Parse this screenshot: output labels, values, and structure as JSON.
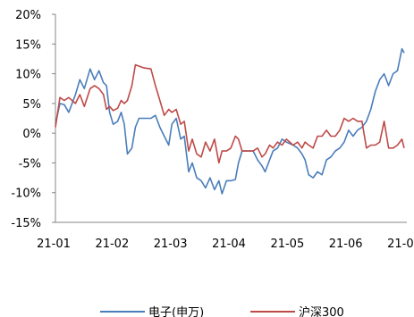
{
  "chart_data": {
    "type": "line",
    "x_tick_labels": [
      "21-01",
      "21-02",
      "21-03",
      "21-04",
      "21-05",
      "21-06",
      "21-07"
    ],
    "y_tick_labels": [
      "20%",
      "15%",
      "10%",
      "5%",
      "0%",
      "-5%",
      "-10%",
      "-15%"
    ],
    "ylim": [
      -15,
      20
    ],
    "y_ticks": [
      20,
      15,
      10,
      5,
      0,
      -5,
      -10,
      -15
    ],
    "legend_position": "bottom",
    "grid": false,
    "series": [
      {
        "name": "电子(申万)",
        "color": "#4a7ebb",
        "values": [
          [
            0.0,
            1.5
          ],
          [
            0.1,
            5.0
          ],
          [
            0.2,
            4.8
          ],
          [
            0.3,
            3.5
          ],
          [
            0.45,
            6.5
          ],
          [
            0.55,
            9.0
          ],
          [
            0.65,
            7.5
          ],
          [
            0.78,
            10.8
          ],
          [
            0.88,
            9.0
          ],
          [
            0.98,
            10.5
          ],
          [
            1.08,
            8.5
          ],
          [
            1.15,
            8.0
          ],
          [
            1.22,
            3.5
          ],
          [
            1.3,
            1.5
          ],
          [
            1.4,
            2.0
          ],
          [
            1.48,
            3.5
          ],
          [
            1.55,
            1.5
          ],
          [
            1.62,
            -3.5
          ],
          [
            1.72,
            -2.5
          ],
          [
            1.8,
            1.0
          ],
          [
            1.88,
            2.5
          ],
          [
            1.98,
            2.5
          ],
          [
            2.15,
            2.5
          ],
          [
            2.25,
            3.0
          ],
          [
            2.35,
            1.0
          ],
          [
            2.45,
            -0.5
          ],
          [
            2.55,
            -2.0
          ],
          [
            2.62,
            1.5
          ],
          [
            2.72,
            2.5
          ],
          [
            2.82,
            -1.0
          ],
          [
            2.9,
            -0.5
          ],
          [
            3.0,
            -6.5
          ],
          [
            3.08,
            -5.0
          ],
          [
            3.18,
            -7.5
          ],
          [
            3.28,
            -8.0
          ],
          [
            3.38,
            -9.2
          ],
          [
            3.48,
            -7.5
          ],
          [
            3.58,
            -9.5
          ],
          [
            3.68,
            -8.0
          ],
          [
            3.75,
            -10.2
          ],
          [
            3.85,
            -8.0
          ],
          [
            3.95,
            -8.0
          ],
          [
            4.05,
            -7.8
          ],
          [
            4.12,
            -5.0
          ],
          [
            4.2,
            -3.0
          ],
          [
            4.45,
            -3.0
          ],
          [
            4.55,
            -4.5
          ],
          [
            4.65,
            -5.5
          ],
          [
            4.72,
            -6.5
          ],
          [
            4.82,
            -4.5
          ],
          [
            4.9,
            -3.0
          ],
          [
            5.0,
            -2.5
          ],
          [
            5.1,
            -1.0
          ],
          [
            5.2,
            -1.5
          ],
          [
            5.35,
            -2.0
          ],
          [
            5.45,
            -2.5
          ],
          [
            5.55,
            -3.5
          ],
          [
            5.62,
            -4.5
          ],
          [
            5.7,
            -7.0
          ],
          [
            5.8,
            -7.5
          ],
          [
            5.9,
            -6.5
          ],
          [
            6.0,
            -7.0
          ],
          [
            6.1,
            -4.5
          ],
          [
            6.2,
            -4.0
          ],
          [
            6.3,
            -3.0
          ],
          [
            6.4,
            -2.5
          ],
          [
            6.5,
            -1.5
          ],
          [
            6.6,
            0.5
          ],
          [
            6.7,
            -0.5
          ],
          [
            6.8,
            0.5
          ],
          [
            6.9,
            1.0
          ],
          [
            7.0,
            2.0
          ],
          [
            7.1,
            4.0
          ],
          [
            7.2,
            7.0
          ],
          [
            7.3,
            9.0
          ],
          [
            7.4,
            10.0
          ],
          [
            7.5,
            8.0
          ],
          [
            7.6,
            10.0
          ],
          [
            7.7,
            10.5
          ],
          [
            7.8,
            14.2
          ],
          [
            7.85,
            13.5
          ]
        ]
      },
      {
        "name": "沪深300",
        "color": "#be4b48",
        "values": [
          [
            0.0,
            1.0
          ],
          [
            0.1,
            6.0
          ],
          [
            0.2,
            5.5
          ],
          [
            0.3,
            6.0
          ],
          [
            0.45,
            5.0
          ],
          [
            0.55,
            6.5
          ],
          [
            0.65,
            4.5
          ],
          [
            0.78,
            7.5
          ],
          [
            0.88,
            8.0
          ],
          [
            0.98,
            7.5
          ],
          [
            1.08,
            6.5
          ],
          [
            1.15,
            4.0
          ],
          [
            1.22,
            4.5
          ],
          [
            1.3,
            3.8
          ],
          [
            1.4,
            4.2
          ],
          [
            1.48,
            5.5
          ],
          [
            1.55,
            5.0
          ],
          [
            1.62,
            5.5
          ],
          [
            1.72,
            8.0
          ],
          [
            1.8,
            11.5
          ],
          [
            1.98,
            11.0
          ],
          [
            2.15,
            10.8
          ],
          [
            2.25,
            8.0
          ],
          [
            2.35,
            5.5
          ],
          [
            2.45,
            3.0
          ],
          [
            2.55,
            4.0
          ],
          [
            2.62,
            3.5
          ],
          [
            2.72,
            4.0
          ],
          [
            2.82,
            1.5
          ],
          [
            2.9,
            2.0
          ],
          [
            3.0,
            -3.0
          ],
          [
            3.08,
            -1.0
          ],
          [
            3.18,
            -3.5
          ],
          [
            3.28,
            -4.0
          ],
          [
            3.38,
            -1.5
          ],
          [
            3.48,
            -3.0
          ],
          [
            3.58,
            -1.0
          ],
          [
            3.68,
            -5.0
          ],
          [
            3.75,
            -3.0
          ],
          [
            3.85,
            -3.0
          ],
          [
            3.95,
            -2.5
          ],
          [
            4.05,
            -0.5
          ],
          [
            4.12,
            -1.0
          ],
          [
            4.2,
            -3.0
          ],
          [
            4.45,
            -3.0
          ],
          [
            4.55,
            -2.5
          ],
          [
            4.65,
            -4.0
          ],
          [
            4.72,
            -3.5
          ],
          [
            4.82,
            -2.0
          ],
          [
            4.9,
            -2.5
          ],
          [
            5.0,
            -1.5
          ],
          [
            5.1,
            -2.0
          ],
          [
            5.2,
            -1.0
          ],
          [
            5.35,
            -2.0
          ],
          [
            5.45,
            -1.5
          ],
          [
            5.55,
            -2.5
          ],
          [
            5.62,
            -1.5
          ],
          [
            5.7,
            -2.0
          ],
          [
            5.8,
            -2.5
          ],
          [
            5.9,
            -0.5
          ],
          [
            6.0,
            -0.5
          ],
          [
            6.1,
            0.5
          ],
          [
            6.2,
            -0.5
          ],
          [
            6.3,
            -0.5
          ],
          [
            6.4,
            0.5
          ],
          [
            6.5,
            2.5
          ],
          [
            6.6,
            2.0
          ],
          [
            6.7,
            2.5
          ],
          [
            6.8,
            2.0
          ],
          [
            6.9,
            2.0
          ],
          [
            7.0,
            -2.5
          ],
          [
            7.1,
            -2.0
          ],
          [
            7.2,
            -2.0
          ],
          [
            7.3,
            -1.5
          ],
          [
            7.4,
            2.0
          ],
          [
            7.5,
            -2.5
          ],
          [
            7.6,
            -2.5
          ],
          [
            7.7,
            -2.0
          ],
          [
            7.8,
            -1.0
          ],
          [
            7.85,
            -2.5
          ]
        ]
      }
    ]
  }
}
